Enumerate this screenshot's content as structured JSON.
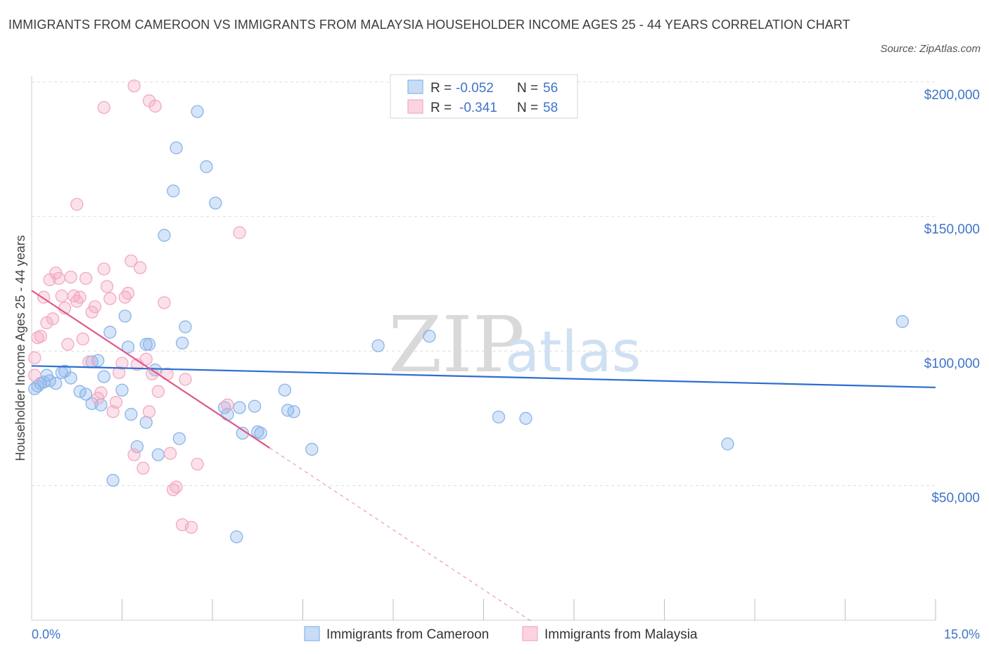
{
  "title": "IMMIGRANTS FROM CAMEROON VS IMMIGRANTS FROM MALAYSIA HOUSEHOLDER INCOME AGES 25 - 44 YEARS CORRELATION CHART",
  "source": "Source: ZipAtlas.com",
  "watermark": {
    "zip": "ZIP",
    "atlas": "atlas"
  },
  "legend_top": {
    "rows": [
      {
        "r_label": "R =",
        "r_value": "-0.052",
        "n_label": "N =",
        "n_value": "56"
      },
      {
        "r_label": "R =",
        "r_value": "-0.341",
        "n_label": "N =",
        "n_value": "58"
      }
    ]
  },
  "chart_data": {
    "type": "scatter",
    "title": "IMMIGRANTS FROM CAMEROON VS IMMIGRANTS FROM MALAYSIA HOUSEHOLDER INCOME AGES 25 - 44 YEARS CORRELATION CHART",
    "xlabel": "",
    "ylabel": "Householder Income Ages 25 - 44 years",
    "xlim": [
      0,
      15
    ],
    "ylim": [
      0,
      200000
    ],
    "x_tick_labels": [
      "0.0%",
      "15.0%"
    ],
    "y_ticks": [
      50000,
      100000,
      150000,
      200000
    ],
    "y_tick_labels": [
      "$50,000",
      "$100,000",
      "$150,000",
      "$200,000"
    ],
    "grid": true,
    "series": [
      {
        "name": "Immigrants from Cameroon",
        "color": "#8ab4ea",
        "line_color": "#2a6fcf",
        "r": -0.052,
        "n": 56,
        "trend": {
          "x": [
            0.0,
            15.0
          ],
          "y": [
            94500,
            86500
          ]
        },
        "points": [
          [
            0.05,
            86000
          ],
          [
            0.1,
            87000
          ],
          [
            0.15,
            88000
          ],
          [
            0.2,
            88500
          ],
          [
            0.25,
            91000
          ],
          [
            0.3,
            89000
          ],
          [
            0.4,
            88000
          ],
          [
            0.5,
            92000
          ],
          [
            0.55,
            92500
          ],
          [
            0.65,
            90000
          ],
          [
            0.8,
            85000
          ],
          [
            0.9,
            84000
          ],
          [
            1.0,
            96000
          ],
          [
            1.1,
            96500
          ],
          [
            1.15,
            80000
          ],
          [
            1.2,
            90500
          ],
          [
            1.3,
            107000
          ],
          [
            1.5,
            85500
          ],
          [
            1.55,
            113000
          ],
          [
            1.6,
            101500
          ],
          [
            1.65,
            76500
          ],
          [
            1.75,
            64500
          ],
          [
            1.9,
            102500
          ],
          [
            1.9,
            73500
          ],
          [
            1.95,
            102500
          ],
          [
            2.05,
            93000
          ],
          [
            2.1,
            61500
          ],
          [
            2.2,
            143000
          ],
          [
            2.35,
            159500
          ],
          [
            2.4,
            175500
          ],
          [
            2.45,
            67500
          ],
          [
            2.5,
            103000
          ],
          [
            2.55,
            109000
          ],
          [
            2.75,
            189000
          ],
          [
            2.9,
            168500
          ],
          [
            3.05,
            155000
          ],
          [
            3.2,
            79000
          ],
          [
            3.25,
            76500
          ],
          [
            3.45,
            79000
          ],
          [
            3.5,
            69500
          ],
          [
            3.7,
            79500
          ],
          [
            3.75,
            70000
          ],
          [
            3.8,
            69500
          ],
          [
            4.2,
            85500
          ],
          [
            4.25,
            78000
          ],
          [
            4.35,
            77500
          ],
          [
            4.65,
            63500
          ],
          [
            5.75,
            102000
          ],
          [
            6.6,
            105500
          ],
          [
            7.75,
            75500
          ],
          [
            8.2,
            75000
          ],
          [
            11.55,
            65500
          ],
          [
            14.45,
            111000
          ],
          [
            1.35,
            52000
          ],
          [
            3.4,
            31000
          ],
          [
            1.0,
            80500
          ]
        ]
      },
      {
        "name": "Immigrants from Malaysia",
        "color": "#f4a8c3",
        "line_color": "#e0578b",
        "r": -0.341,
        "n": 58,
        "trend": {
          "x": [
            0.0,
            3.95
          ],
          "y": [
            122500,
            64000
          ]
        },
        "trend_dashed": {
          "x": [
            3.95,
            8.3
          ],
          "y": [
            64000,
            -500
          ]
        },
        "points": [
          [
            0.05,
            97500
          ],
          [
            0.1,
            105000
          ],
          [
            0.15,
            105500
          ],
          [
            0.2,
            120000
          ],
          [
            0.25,
            110500
          ],
          [
            0.3,
            126500
          ],
          [
            0.35,
            112000
          ],
          [
            0.4,
            129000
          ],
          [
            0.45,
            127000
          ],
          [
            0.5,
            120500
          ],
          [
            0.55,
            116000
          ],
          [
            0.6,
            102500
          ],
          [
            0.65,
            127500
          ],
          [
            0.7,
            120500
          ],
          [
            0.75,
            118500
          ],
          [
            0.8,
            120000
          ],
          [
            0.85,
            104500
          ],
          [
            0.9,
            127000
          ],
          [
            0.95,
            96000
          ],
          [
            1.0,
            114500
          ],
          [
            1.05,
            116500
          ],
          [
            1.1,
            82500
          ],
          [
            1.15,
            84500
          ],
          [
            1.2,
            130500
          ],
          [
            1.25,
            124000
          ],
          [
            1.3,
            119500
          ],
          [
            1.35,
            77500
          ],
          [
            1.4,
            81000
          ],
          [
            1.45,
            92000
          ],
          [
            1.5,
            95500
          ],
          [
            1.55,
            120000
          ],
          [
            1.6,
            121500
          ],
          [
            1.65,
            133500
          ],
          [
            1.7,
            61500
          ],
          [
            1.75,
            95000
          ],
          [
            1.8,
            131000
          ],
          [
            1.85,
            56500
          ],
          [
            1.9,
            97000
          ],
          [
            1.95,
            77500
          ],
          [
            2.0,
            91500
          ],
          [
            2.1,
            85000
          ],
          [
            2.2,
            118000
          ],
          [
            2.25,
            91500
          ],
          [
            2.3,
            62000
          ],
          [
            2.35,
            48500
          ],
          [
            2.4,
            49500
          ],
          [
            2.5,
            35500
          ],
          [
            2.55,
            89500
          ],
          [
            2.65,
            34500
          ],
          [
            2.75,
            58000
          ],
          [
            3.25,
            80000
          ],
          [
            3.45,
            144000
          ],
          [
            0.75,
            154500
          ],
          [
            1.2,
            190500
          ],
          [
            1.7,
            198500
          ],
          [
            1.95,
            193000
          ],
          [
            2.05,
            191000
          ],
          [
            0.05,
            91000
          ]
        ]
      }
    ]
  },
  "bottom_legend": [
    "Immigrants from Cameroon",
    "Immigrants from Malaysia"
  ]
}
